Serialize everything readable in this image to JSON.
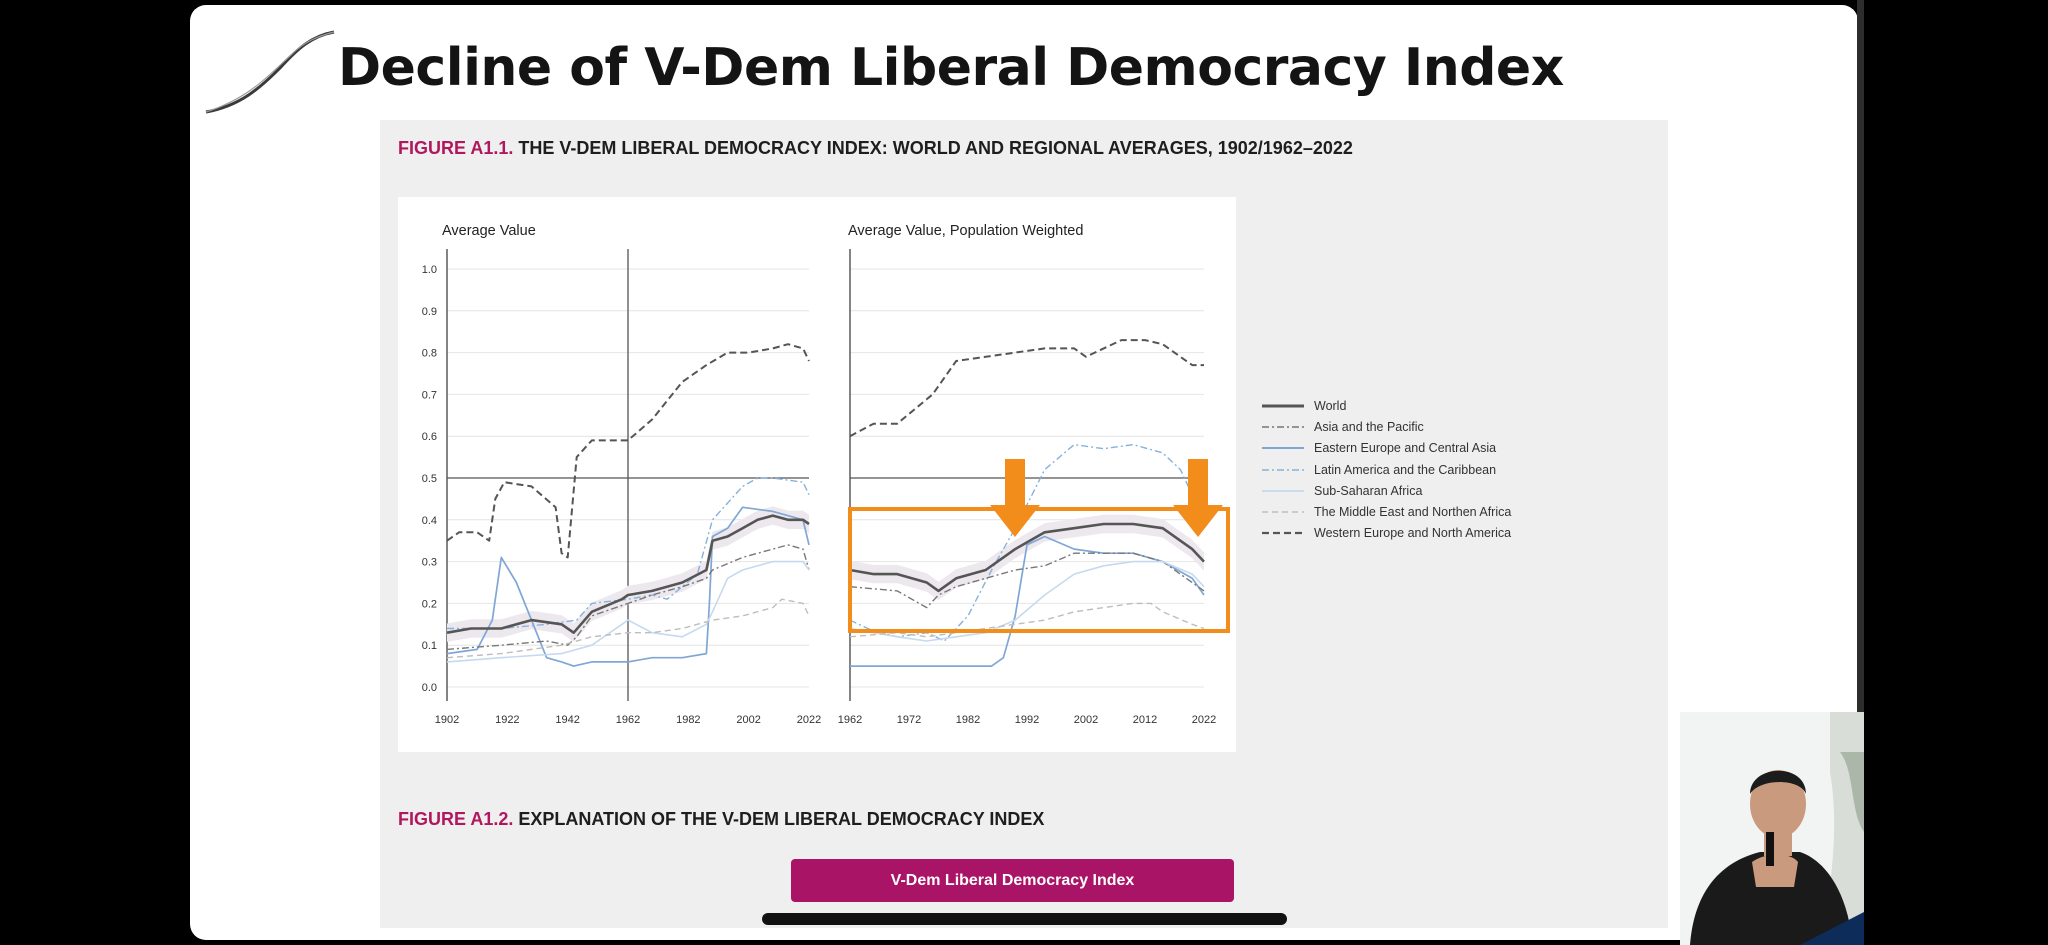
{
  "slide": {
    "title": "Decline of V-Dem Liberal Democracy Index"
  },
  "figure1": {
    "number": "FIGURE A1.1.",
    "caption": "THE V-DEM LIBERAL DEMOCRACY INDEX: WORLD AND REGIONAL AVERAGES, 1902/1962–2022"
  },
  "figure2": {
    "number": "FIGURE A1.2.",
    "caption": "EXPLANATION OF THE V-DEM LIBERAL DEMOCRACY INDEX"
  },
  "index_button": {
    "label": "V-Dem Liberal Democracy Index"
  },
  "legend": [
    {
      "name": "World",
      "color": "#555555",
      "style": "solid-thick"
    },
    {
      "name": "Asia and the Pacific",
      "color": "#777777",
      "style": "dashdot"
    },
    {
      "name": "Eastern Europe and Central Asia",
      "color": "#7fa7d6",
      "style": "solid"
    },
    {
      "name": "Latin America and the Caribbean",
      "color": "#86b1dd",
      "style": "dashdot"
    },
    {
      "name": "Sub-Saharan Africa",
      "color": "#c6d9ef",
      "style": "solid"
    },
    {
      "name": "The Middle East and Northen Africa",
      "color": "#bdbdbd",
      "style": "dashed"
    },
    {
      "name": "Western Europe and North America",
      "color": "#555555",
      "style": "dashed-thick"
    }
  ],
  "chart_data": [
    {
      "type": "line",
      "title": "Average Value",
      "ylabel": "",
      "xlabel": "",
      "ylim": [
        0,
        1
      ],
      "yticks": [
        "0.0",
        "0.1",
        "0.2",
        "0.3",
        "0.4",
        "0.5",
        "0.6",
        "0.7",
        "0.8",
        "0.9",
        "1.0"
      ],
      "xticks": [
        "1902",
        "1922",
        "1942",
        "1962",
        "1982",
        "2002",
        "2022"
      ],
      "xlim": [
        1902,
        2022
      ],
      "reference_line_x": 1962,
      "reference_line_y": 0.5,
      "series": [
        {
          "name": "Western Europe and North America",
          "x": [
            1902,
            1906,
            1912,
            1916,
            1918,
            1921,
            1930,
            1938,
            1940,
            1942,
            1945,
            1950,
            1962,
            1970,
            1980,
            1988,
            1995,
            2002,
            2010,
            2015,
            2020,
            2022
          ],
          "y": [
            0.35,
            0.37,
            0.37,
            0.35,
            0.45,
            0.49,
            0.48,
            0.43,
            0.32,
            0.31,
            0.55,
            0.59,
            0.59,
            0.64,
            0.73,
            0.77,
            0.8,
            0.8,
            0.81,
            0.82,
            0.81,
            0.78
          ]
        },
        {
          "name": "World",
          "x": [
            1902,
            1910,
            1920,
            1930,
            1940,
            1944,
            1950,
            1960,
            1962,
            1970,
            1980,
            1988,
            1990,
            1995,
            2000,
            2005,
            2010,
            2015,
            2020,
            2022
          ],
          "y": [
            0.13,
            0.14,
            0.14,
            0.16,
            0.15,
            0.13,
            0.18,
            0.21,
            0.22,
            0.23,
            0.25,
            0.28,
            0.35,
            0.36,
            0.38,
            0.4,
            0.41,
            0.4,
            0.4,
            0.39
          ]
        },
        {
          "name": "Eastern Europe and Central Asia",
          "x": [
            1902,
            1912,
            1917,
            1920,
            1925,
            1935,
            1940,
            1944,
            1950,
            1962,
            1970,
            1980,
            1988,
            1989,
            1990,
            1995,
            2000,
            2010,
            2020,
            2022
          ],
          "y": [
            0.08,
            0.09,
            0.16,
            0.31,
            0.25,
            0.07,
            0.06,
            0.05,
            0.06,
            0.06,
            0.07,
            0.07,
            0.08,
            0.2,
            0.36,
            0.38,
            0.43,
            0.42,
            0.4,
            0.34
          ]
        },
        {
          "name": "Latin America and the Caribbean",
          "x": [
            1902,
            1920,
            1935,
            1945,
            1950,
            1962,
            1970,
            1975,
            1985,
            1990,
            2000,
            2005,
            2010,
            2020,
            2022
          ],
          "y": [
            0.14,
            0.14,
            0.15,
            0.16,
            0.2,
            0.21,
            0.22,
            0.21,
            0.27,
            0.4,
            0.48,
            0.5,
            0.5,
            0.49,
            0.46
          ]
        },
        {
          "name": "Asia and the Pacific",
          "x": [
            1902,
            1920,
            1935,
            1942,
            1945,
            1950,
            1962,
            1970,
            1980,
            1988,
            1990,
            2000,
            2010,
            2015,
            2020,
            2022
          ],
          "y": [
            0.09,
            0.1,
            0.11,
            0.1,
            0.12,
            0.17,
            0.2,
            0.22,
            0.24,
            0.26,
            0.28,
            0.31,
            0.33,
            0.34,
            0.33,
            0.28
          ]
        },
        {
          "name": "Sub-Saharan Africa",
          "x": [
            1902,
            1920,
            1940,
            1950,
            1960,
            1962,
            1970,
            1980,
            1988,
            1990,
            1995,
            2000,
            2010,
            2020,
            2022
          ],
          "y": [
            0.06,
            0.07,
            0.08,
            0.1,
            0.15,
            0.16,
            0.13,
            0.12,
            0.15,
            0.18,
            0.26,
            0.28,
            0.3,
            0.3,
            0.28
          ]
        },
        {
          "name": "The Middle East and Northen Africa",
          "x": [
            1902,
            1920,
            1940,
            1950,
            1962,
            1970,
            1980,
            1990,
            2000,
            2010,
            2013,
            2020,
            2022
          ],
          "y": [
            0.07,
            0.08,
            0.1,
            0.12,
            0.13,
            0.13,
            0.14,
            0.16,
            0.17,
            0.19,
            0.21,
            0.2,
            0.17
          ]
        }
      ]
    },
    {
      "type": "line",
      "title": "Average Value, Population Weighted",
      "ylabel": "",
      "xlabel": "",
      "ylim": [
        0,
        1
      ],
      "xticks": [
        "1962",
        "1972",
        "1982",
        "1992",
        "2002",
        "2012",
        "2022"
      ],
      "xlim": [
        1962,
        2022
      ],
      "reference_line_y": 0.5,
      "series": [
        {
          "name": "Western Europe and North America",
          "x": [
            1962,
            1966,
            1970,
            1976,
            1980,
            1985,
            1990,
            1995,
            2000,
            2002,
            2008,
            2012,
            2015,
            2018,
            2020,
            2022
          ],
          "y": [
            0.6,
            0.63,
            0.63,
            0.7,
            0.78,
            0.79,
            0.8,
            0.81,
            0.81,
            0.79,
            0.83,
            0.83,
            0.82,
            0.79,
            0.77,
            0.77
          ]
        },
        {
          "name": "World",
          "x": [
            1962,
            1966,
            1970,
            1975,
            1977,
            1980,
            1985,
            1990,
            1995,
            2000,
            2005,
            2010,
            2015,
            2020,
            2022
          ],
          "y": [
            0.28,
            0.27,
            0.27,
            0.25,
            0.23,
            0.26,
            0.28,
            0.33,
            0.37,
            0.38,
            0.39,
            0.39,
            0.38,
            0.33,
            0.3
          ]
        },
        {
          "name": "Eastern Europe and Central Asia",
          "x": [
            1962,
            1970,
            1980,
            1986,
            1988,
            1990,
            1992,
            1995,
            2000,
            2005,
            2010,
            2015,
            2020,
            2022
          ],
          "y": [
            0.05,
            0.05,
            0.05,
            0.05,
            0.07,
            0.17,
            0.34,
            0.36,
            0.33,
            0.32,
            0.32,
            0.3,
            0.26,
            0.22
          ]
        },
        {
          "name": "Latin America and the Caribbean",
          "x": [
            1962,
            1965,
            1970,
            1975,
            1978,
            1982,
            1986,
            1990,
            1995,
            2000,
            2005,
            2010,
            2015,
            2018,
            2020,
            2022
          ],
          "y": [
            0.16,
            0.14,
            0.12,
            0.13,
            0.11,
            0.17,
            0.28,
            0.38,
            0.52,
            0.58,
            0.57,
            0.58,
            0.56,
            0.52,
            0.46,
            0.42
          ]
        },
        {
          "name": "Asia and the Pacific",
          "x": [
            1962,
            1970,
            1975,
            1977,
            1980,
            1985,
            1990,
            1995,
            2000,
            2005,
            2010,
            2015,
            2020,
            2022
          ],
          "y": [
            0.24,
            0.23,
            0.19,
            0.22,
            0.24,
            0.26,
            0.28,
            0.29,
            0.32,
            0.32,
            0.32,
            0.3,
            0.25,
            0.23
          ]
        },
        {
          "name": "Sub-Saharan Africa",
          "x": [
            1962,
            1970,
            1975,
            1980,
            1985,
            1990,
            1995,
            2000,
            2005,
            2010,
            2015,
            2020,
            2022
          ],
          "y": [
            0.14,
            0.12,
            0.11,
            0.12,
            0.13,
            0.16,
            0.22,
            0.27,
            0.29,
            0.3,
            0.3,
            0.27,
            0.24
          ]
        },
        {
          "name": "The Middle East and Northen Africa",
          "x": [
            1962,
            1970,
            1975,
            1980,
            1985,
            1990,
            1995,
            2000,
            2005,
            2010,
            2013,
            2015,
            2020,
            2022
          ],
          "y": [
            0.12,
            0.13,
            0.12,
            0.13,
            0.14,
            0.15,
            0.16,
            0.18,
            0.19,
            0.2,
            0.2,
            0.18,
            0.15,
            0.14
          ]
        }
      ]
    }
  ]
}
